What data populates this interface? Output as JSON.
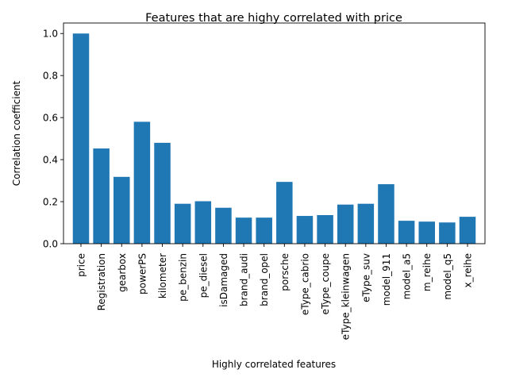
{
  "chart_data": {
    "type": "bar",
    "title": "Features that are highy correlated with price",
    "xlabel": "Highly correlated features",
    "ylabel": "Correlation coefficient",
    "ylim": [
      0,
      1.05
    ],
    "yticks": [
      "0.0",
      "0.2",
      "0.4",
      "0.6",
      "0.8",
      "1.0"
    ],
    "grid": false,
    "bar_color": "#1f77b4",
    "categories": [
      "price",
      "Registration",
      "gearbox",
      "powerPS",
      "kilometer",
      "pe_benzin",
      "pe_diesel",
      "isDamaged",
      "brand_audi",
      "brand_opel",
      "porsche",
      "eType_cabrio",
      "eType_coupe",
      "eType_kleinwagen",
      "eType_suv",
      "model_911",
      "model_a5",
      "m_reihe",
      "model_q5",
      "x_reihe"
    ],
    "values": [
      1.0,
      0.453,
      0.318,
      0.58,
      0.48,
      0.19,
      0.202,
      0.171,
      0.124,
      0.124,
      0.294,
      0.132,
      0.136,
      0.186,
      0.19,
      0.283,
      0.109,
      0.105,
      0.101,
      0.128
    ]
  }
}
